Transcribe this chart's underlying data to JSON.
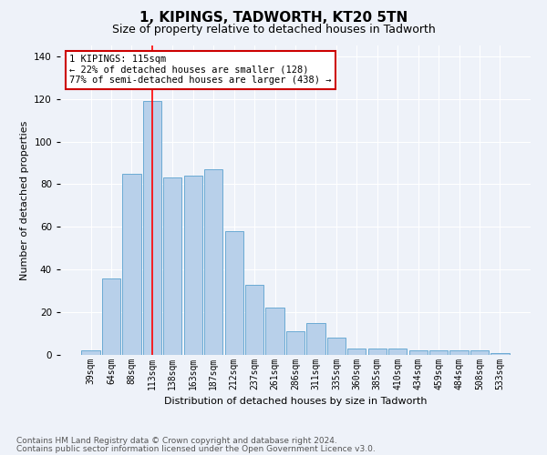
{
  "title": "1, KIPINGS, TADWORTH, KT20 5TN",
  "subtitle": "Size of property relative to detached houses in Tadworth",
  "xlabel": "Distribution of detached houses by size in Tadworth",
  "ylabel": "Number of detached properties",
  "bin_labels": [
    "39sqm",
    "64sqm",
    "88sqm",
    "113sqm",
    "138sqm",
    "163sqm",
    "187sqm",
    "212sqm",
    "237sqm",
    "261sqm",
    "286sqm",
    "311sqm",
    "335sqm",
    "360sqm",
    "385sqm",
    "410sqm",
    "434sqm",
    "459sqm",
    "484sqm",
    "508sqm",
    "533sqm"
  ],
  "bar_heights": [
    2,
    36,
    85,
    119,
    83,
    84,
    87,
    58,
    33,
    22,
    11,
    15,
    8,
    3,
    3,
    3,
    2,
    2,
    2,
    2,
    1
  ],
  "bar_color": "#b8d0ea",
  "bar_edge_color": "#6aaad4",
  "red_line_bin_idx": 3,
  "annotation_text": "1 KIPINGS: 115sqm\n← 22% of detached houses are smaller (128)\n77% of semi-detached houses are larger (438) →",
  "annotation_box_facecolor": "#ffffff",
  "annotation_box_edgecolor": "#cc0000",
  "footer_line1": "Contains HM Land Registry data © Crown copyright and database right 2024.",
  "footer_line2": "Contains public sector information licensed under the Open Government Licence v3.0.",
  "background_color": "#eef2f9",
  "plot_bg_color": "#eef2f9",
  "ylim": [
    0,
    145
  ],
  "yticks": [
    0,
    20,
    40,
    60,
    80,
    100,
    120,
    140
  ],
  "title_fontsize": 11,
  "subtitle_fontsize": 9,
  "axis_label_fontsize": 8,
  "tick_fontsize": 7,
  "annotation_fontsize": 7.5,
  "footer_fontsize": 6.5
}
